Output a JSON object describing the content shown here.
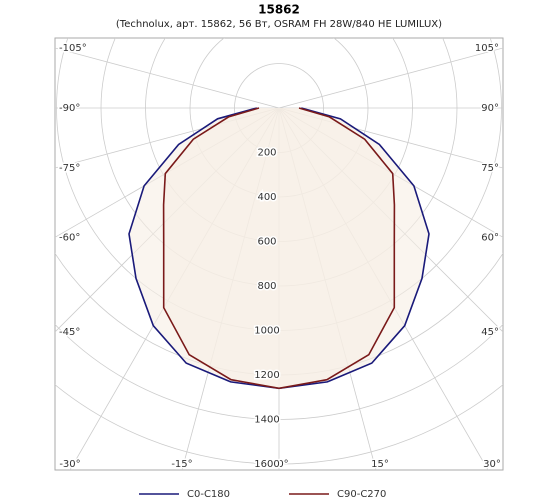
{
  "chart_data": {
    "type": "polar",
    "title": "15862",
    "subtitle": "(Technolux, арт. 15862, 56 Вт, OSRAM FH 28W/840 HE LUMILUX)",
    "theta": [
      -90,
      -80,
      -70,
      -60,
      -50,
      -40,
      -30,
      -20,
      -10,
      0,
      10,
      20,
      30,
      40,
      50,
      60,
      70,
      80,
      90
    ],
    "series": [
      {
        "name": "C0-C180",
        "color": "#1a1a7a",
        "values": [
          100,
          280,
          480,
          700,
          880,
          1000,
          1130,
          1220,
          1250,
          1260,
          1250,
          1220,
          1130,
          1000,
          880,
          700,
          480,
          280,
          100
        ]
      },
      {
        "name": "C90-C270",
        "color": "#7a1a1a",
        "values": [
          90,
          230,
          410,
          590,
          677,
          806,
          1036,
          1180,
          1240,
          1260,
          1240,
          1180,
          1036,
          806,
          677,
          590,
          410,
          230,
          90
        ]
      }
    ],
    "rlim": [
      0,
      1600
    ],
    "rticks": [
      200,
      400,
      600,
      800,
      1000,
      1200,
      1400,
      1600
    ],
    "thetaticks": [
      {
        "value": -105,
        "label": "-105°"
      },
      {
        "value": -90,
        "label": "-90°"
      },
      {
        "value": -75,
        "label": "-75°"
      },
      {
        "value": -60,
        "label": "-60°"
      },
      {
        "value": -45,
        "label": "-45°"
      },
      {
        "value": -30,
        "label": "-30°"
      },
      {
        "value": -15,
        "label": "-15°"
      },
      {
        "value": 0,
        "label": "0°"
      },
      {
        "value": 15,
        "label": "15°"
      },
      {
        "value": 30,
        "label": "30°"
      },
      {
        "value": 45,
        "label": "45°"
      },
      {
        "value": 60,
        "label": "60°"
      },
      {
        "value": 75,
        "label": "75°"
      },
      {
        "value": 90,
        "label": "90°"
      },
      {
        "value": 105,
        "label": "105°"
      }
    ],
    "grid": true
  }
}
